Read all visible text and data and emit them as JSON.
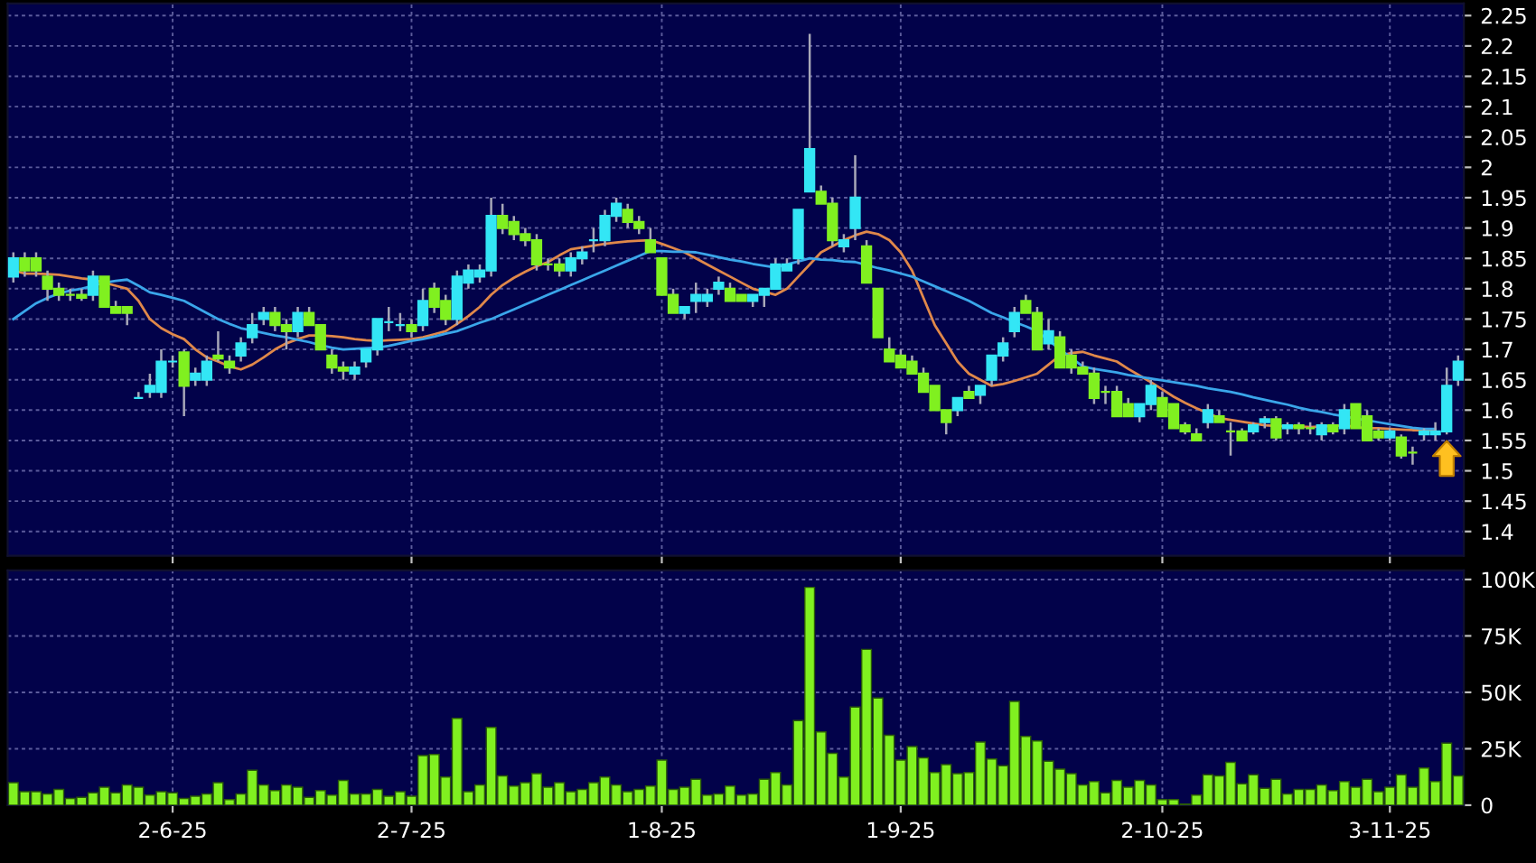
{
  "chart_data": [
    {
      "type": "candlestick",
      "ohlc": [
        [
          1.82,
          1.86,
          1.81,
          1.85
        ],
        [
          1.85,
          1.86,
          1.82,
          1.83
        ],
        [
          1.85,
          1.86,
          1.82,
          1.83
        ],
        [
          1.82,
          1.83,
          1.78,
          1.8
        ],
        [
          1.8,
          1.81,
          1.78,
          1.79
        ],
        [
          1.79,
          1.8,
          1.78,
          1.79
        ],
        [
          1.79,
          1.8,
          1.78,
          1.785
        ],
        [
          1.79,
          1.83,
          1.78,
          1.82
        ],
        [
          1.82,
          1.82,
          1.77,
          1.77
        ],
        [
          1.77,
          1.78,
          1.76,
          1.76
        ],
        [
          1.77,
          1.77,
          1.74,
          1.76
        ],
        [
          1.62,
          1.63,
          1.62,
          1.62
        ],
        [
          1.63,
          1.66,
          1.62,
          1.64
        ],
        [
          1.63,
          1.7,
          1.62,
          1.68
        ],
        [
          1.68,
          1.69,
          1.67,
          1.68
        ],
        [
          1.695,
          1.7,
          1.59,
          1.64
        ],
        [
          1.65,
          1.67,
          1.64,
          1.66
        ],
        [
          1.65,
          1.69,
          1.64,
          1.68
        ],
        [
          1.69,
          1.73,
          1.68,
          1.685
        ],
        [
          1.68,
          1.69,
          1.66,
          1.67
        ],
        [
          1.69,
          1.72,
          1.68,
          1.71
        ],
        [
          1.72,
          1.76,
          1.71,
          1.74
        ],
        [
          1.75,
          1.77,
          1.74,
          1.76
        ],
        [
          1.76,
          1.77,
          1.73,
          1.74
        ],
        [
          1.74,
          1.75,
          1.7,
          1.73
        ],
        [
          1.73,
          1.77,
          1.72,
          1.76
        ],
        [
          1.76,
          1.77,
          1.74,
          1.74
        ],
        [
          1.74,
          1.74,
          1.7,
          1.7
        ],
        [
          1.69,
          1.7,
          1.66,
          1.67
        ],
        [
          1.67,
          1.68,
          1.65,
          1.665
        ],
        [
          1.66,
          1.68,
          1.65,
          1.67
        ],
        [
          1.68,
          1.7,
          1.67,
          1.7
        ],
        [
          1.7,
          1.75,
          1.69,
          1.75
        ],
        [
          1.745,
          1.77,
          1.73,
          1.745
        ],
        [
          1.74,
          1.76,
          1.73,
          1.74
        ],
        [
          1.74,
          1.75,
          1.72,
          1.73
        ],
        [
          1.74,
          1.8,
          1.73,
          1.78
        ],
        [
          1.8,
          1.81,
          1.76,
          1.77
        ],
        [
          1.78,
          1.79,
          1.74,
          1.75
        ],
        [
          1.75,
          1.83,
          1.74,
          1.82
        ],
        [
          1.81,
          1.84,
          1.8,
          1.83
        ],
        [
          1.82,
          1.84,
          1.81,
          1.83
        ],
        [
          1.83,
          1.95,
          1.82,
          1.92
        ],
        [
          1.92,
          1.94,
          1.89,
          1.9
        ],
        [
          1.91,
          1.92,
          1.88,
          1.89
        ],
        [
          1.89,
          1.9,
          1.87,
          1.88
        ],
        [
          1.88,
          1.89,
          1.83,
          1.84
        ],
        [
          1.84,
          1.85,
          1.83,
          1.84
        ],
        [
          1.84,
          1.85,
          1.82,
          1.83
        ],
        [
          1.83,
          1.86,
          1.82,
          1.85
        ],
        [
          1.85,
          1.87,
          1.84,
          1.86
        ],
        [
          1.88,
          1.9,
          1.86,
          1.88
        ],
        [
          1.88,
          1.93,
          1.87,
          1.92
        ],
        [
          1.92,
          1.95,
          1.91,
          1.94
        ],
        [
          1.93,
          1.94,
          1.9,
          1.91
        ],
        [
          1.91,
          1.92,
          1.89,
          1.9
        ],
        [
          1.88,
          1.9,
          1.86,
          1.86
        ],
        [
          1.85,
          1.85,
          1.79,
          1.79
        ],
        [
          1.79,
          1.8,
          1.76,
          1.76
        ],
        [
          1.76,
          1.77,
          1.75,
          1.77
        ],
        [
          1.78,
          1.81,
          1.76,
          1.79
        ],
        [
          1.78,
          1.8,
          1.77,
          1.79
        ],
        [
          1.8,
          1.82,
          1.79,
          1.81
        ],
        [
          1.8,
          1.81,
          1.78,
          1.78
        ],
        [
          1.79,
          1.79,
          1.78,
          1.78
        ],
        [
          1.78,
          1.79,
          1.77,
          1.79
        ],
        [
          1.79,
          1.8,
          1.77,
          1.8
        ],
        [
          1.8,
          1.85,
          1.8,
          1.84
        ],
        [
          1.83,
          1.85,
          1.83,
          1.84
        ],
        [
          1.85,
          1.93,
          1.84,
          1.93
        ],
        [
          1.96,
          2.22,
          1.96,
          2.03
        ],
        [
          1.96,
          1.97,
          1.94,
          1.94
        ],
        [
          1.94,
          1.95,
          1.87,
          1.88
        ],
        [
          1.87,
          1.89,
          1.86,
          1.88
        ],
        [
          1.9,
          2.02,
          1.88,
          1.95
        ],
        [
          1.87,
          1.88,
          1.81,
          1.81
        ],
        [
          1.8,
          1.8,
          1.72,
          1.72
        ],
        [
          1.7,
          1.72,
          1.68,
          1.68
        ],
        [
          1.69,
          1.7,
          1.67,
          1.67
        ],
        [
          1.68,
          1.69,
          1.66,
          1.66
        ],
        [
          1.66,
          1.67,
          1.63,
          1.63
        ],
        [
          1.64,
          1.64,
          1.6,
          1.6
        ],
        [
          1.6,
          1.6,
          1.56,
          1.58
        ],
        [
          1.6,
          1.62,
          1.59,
          1.62
        ],
        [
          1.63,
          1.64,
          1.62,
          1.62
        ],
        [
          1.625,
          1.64,
          1.61,
          1.64
        ],
        [
          1.65,
          1.69,
          1.64,
          1.69
        ],
        [
          1.69,
          1.72,
          1.68,
          1.71
        ],
        [
          1.73,
          1.77,
          1.72,
          1.76
        ],
        [
          1.78,
          1.79,
          1.76,
          1.76
        ],
        [
          1.76,
          1.77,
          1.7,
          1.7
        ],
        [
          1.71,
          1.75,
          1.7,
          1.73
        ],
        [
          1.72,
          1.73,
          1.67,
          1.67
        ],
        [
          1.69,
          1.7,
          1.66,
          1.67
        ],
        [
          1.67,
          1.68,
          1.66,
          1.66
        ],
        [
          1.66,
          1.67,
          1.61,
          1.62
        ],
        [
          1.63,
          1.64,
          1.61,
          1.63
        ],
        [
          1.63,
          1.64,
          1.59,
          1.59
        ],
        [
          1.61,
          1.62,
          1.59,
          1.59
        ],
        [
          1.59,
          1.61,
          1.58,
          1.61
        ],
        [
          1.61,
          1.65,
          1.6,
          1.64
        ],
        [
          1.62,
          1.63,
          1.59,
          1.59
        ],
        [
          1.61,
          1.61,
          1.57,
          1.57
        ],
        [
          1.575,
          1.58,
          1.56,
          1.565
        ],
        [
          1.56,
          1.57,
          1.55,
          1.55
        ],
        [
          1.58,
          1.61,
          1.57,
          1.6
        ],
        [
          1.59,
          1.6,
          1.58,
          1.58
        ],
        [
          1.565,
          1.58,
          1.525,
          1.565
        ],
        [
          1.565,
          1.57,
          1.55,
          1.55
        ],
        [
          1.565,
          1.58,
          1.56,
          1.575
        ],
        [
          1.58,
          1.59,
          1.57,
          1.585
        ],
        [
          1.585,
          1.59,
          1.55,
          1.555
        ],
        [
          1.57,
          1.58,
          1.56,
          1.575
        ],
        [
          1.575,
          1.58,
          1.56,
          1.57
        ],
        [
          1.57,
          1.58,
          1.56,
          1.57
        ],
        [
          1.56,
          1.58,
          1.55,
          1.575
        ],
        [
          1.575,
          1.58,
          1.56,
          1.565
        ],
        [
          1.57,
          1.61,
          1.56,
          1.6
        ],
        [
          1.61,
          1.61,
          1.57,
          1.57
        ],
        [
          1.59,
          1.6,
          1.55,
          1.55
        ],
        [
          1.565,
          1.57,
          1.55,
          1.555
        ],
        [
          1.555,
          1.57,
          1.55,
          1.565
        ],
        [
          1.555,
          1.56,
          1.52,
          1.525
        ],
        [
          1.53,
          1.54,
          1.51,
          1.53
        ],
        [
          1.56,
          1.57,
          1.55,
          1.565
        ],
        [
          1.56,
          1.58,
          1.55,
          1.565
        ],
        [
          1.565,
          1.67,
          1.56,
          1.64
        ],
        [
          1.65,
          1.69,
          1.64,
          1.68
        ]
      ],
      "colors": [
        "#33e6f5",
        "#80f020",
        "#80f020",
        "#80f020",
        "#80f020",
        "#80f020",
        "#80f020",
        "#33e6f5",
        "#80f020",
        "#80f020",
        "#80f020",
        "#33e6f5",
        "#33e6f5",
        "#33e6f5",
        "#33e6f5",
        "#80f020",
        "#33e6f5",
        "#33e6f5",
        "#80f020",
        "#80f020",
        "#33e6f5",
        "#33e6f5",
        "#33e6f5",
        "#80f020",
        "#80f020",
        "#33e6f5",
        "#80f020",
        "#80f020",
        "#80f020",
        "#80f020",
        "#33e6f5",
        "#33e6f5",
        "#33e6f5",
        "#33e6f5",
        "#33e6f5",
        "#80f020",
        "#33e6f5",
        "#80f020",
        "#80f020",
        "#33e6f5",
        "#33e6f5",
        "#33e6f5",
        "#33e6f5",
        "#80f020",
        "#80f020",
        "#80f020",
        "#80f020",
        "#80f020",
        "#80f020",
        "#33e6f5",
        "#33e6f5",
        "#33e6f5",
        "#33e6f5",
        "#33e6f5",
        "#80f020",
        "#80f020",
        "#80f020",
        "#80f020",
        "#80f020",
        "#33e6f5",
        "#33e6f5",
        "#33e6f5",
        "#33e6f5",
        "#80f020",
        "#80f020",
        "#33e6f5",
        "#33e6f5",
        "#33e6f5",
        "#33e6f5",
        "#33e6f5",
        "#33e6f5",
        "#80f020",
        "#80f020",
        "#33e6f5",
        "#33e6f5",
        "#80f020",
        "#80f020",
        "#80f020",
        "#80f020",
        "#80f020",
        "#80f020",
        "#80f020",
        "#80f020",
        "#33e6f5",
        "#80f020",
        "#33e6f5",
        "#33e6f5",
        "#33e6f5",
        "#33e6f5",
        "#80f020",
        "#80f020",
        "#33e6f5",
        "#80f020",
        "#80f020",
        "#80f020",
        "#80f020",
        "#80f020",
        "#80f020",
        "#80f020",
        "#33e6f5",
        "#33e6f5",
        "#80f020",
        "#80f020",
        "#80f020",
        "#80f020",
        "#33e6f5",
        "#80f020",
        "#80f020",
        "#80f020",
        "#33e6f5",
        "#33e6f5",
        "#80f020",
        "#33e6f5",
        "#80f020",
        "#80f020",
        "#33e6f5",
        "#80f020",
        "#33e6f5",
        "#80f020",
        "#80f020",
        "#80f020",
        "#33e6f5",
        "#80f020",
        "#80f020",
        "#33e6f5",
        "#33e6f5",
        "#33e6f5",
        "#33e6f5"
      ],
      "series": [
        {
          "type": "line",
          "color": "#e0884a",
          "values": [
            1.83,
            1.825,
            1.825,
            1.824,
            1.823,
            1.82,
            1.817,
            1.815,
            1.81,
            1.805,
            1.8,
            1.78,
            1.75,
            1.735,
            1.725,
            1.717,
            1.7,
            1.687,
            1.68,
            1.672,
            1.667,
            1.675,
            1.687,
            1.7,
            1.71,
            1.717,
            1.723,
            1.723,
            1.722,
            1.72,
            1.717,
            1.715,
            1.714,
            1.715,
            1.716,
            1.717,
            1.72,
            1.725,
            1.73,
            1.742,
            1.755,
            1.77,
            1.79,
            1.806,
            1.818,
            1.828,
            1.837,
            1.844,
            1.855,
            1.865,
            1.868,
            1.871,
            1.874,
            1.876,
            1.878,
            1.879,
            1.88,
            1.874,
            1.867,
            1.86,
            1.85,
            1.84,
            1.83,
            1.82,
            1.81,
            1.8,
            1.795,
            1.79,
            1.8,
            1.82,
            1.84,
            1.86,
            1.87,
            1.88,
            1.888,
            1.894,
            1.89,
            1.88,
            1.86,
            1.83,
            1.785,
            1.74,
            1.71,
            1.68,
            1.66,
            1.65,
            1.64,
            1.643,
            1.648,
            1.654,
            1.66,
            1.675,
            1.69,
            1.694,
            1.696,
            1.69,
            1.685,
            1.68,
            1.668,
            1.657,
            1.646,
            1.634,
            1.622,
            1.612,
            1.603,
            1.595,
            1.587,
            1.584,
            1.581,
            1.578,
            1.575,
            1.574,
            1.573,
            1.573,
            1.572,
            1.573,
            1.574,
            1.575,
            1.572,
            1.57,
            1.57,
            1.569,
            1.568,
            1.567,
            1.567,
            1.566,
            null,
            null
          ]
        },
        {
          "type": "line",
          "color": "#3aa6ea",
          "values": [
            1.75,
            1.763,
            1.776,
            1.785,
            1.792,
            1.797,
            1.8,
            1.805,
            1.81,
            1.813,
            1.815,
            1.805,
            1.794,
            1.79,
            1.785,
            1.78,
            1.77,
            1.76,
            1.75,
            1.742,
            1.735,
            1.731,
            1.727,
            1.723,
            1.72,
            1.716,
            1.712,
            1.707,
            1.703,
            1.7,
            1.701,
            1.702,
            1.703,
            1.706,
            1.71,
            1.714,
            1.717,
            1.721,
            1.726,
            1.73,
            1.737,
            1.744,
            1.75,
            1.758,
            1.766,
            1.774,
            1.782,
            1.79,
            1.798,
            1.806,
            1.814,
            1.822,
            1.83,
            1.838,
            1.846,
            1.854,
            1.862,
            1.862,
            1.861,
            1.861,
            1.86,
            1.856,
            1.852,
            1.848,
            1.845,
            1.841,
            1.838,
            1.835,
            1.84,
            1.845,
            1.85,
            1.848,
            1.847,
            1.845,
            1.844,
            1.839,
            1.834,
            1.83,
            1.825,
            1.82,
            1.812,
            1.804,
            1.796,
            1.788,
            1.78,
            1.77,
            1.76,
            1.753,
            1.745,
            1.738,
            1.73,
            1.715,
            1.7,
            1.686,
            1.672,
            1.668,
            1.665,
            1.662,
            1.658,
            1.655,
            1.652,
            1.649,
            1.646,
            1.643,
            1.64,
            1.636,
            1.633,
            1.63,
            1.626,
            1.621,
            1.617,
            1.613,
            1.609,
            1.604,
            1.6,
            1.597,
            1.593,
            1.59,
            1.586,
            1.583,
            1.58,
            1.577,
            1.574,
            1.571,
            1.569,
            1.569,
            null,
            null
          ]
        }
      ],
      "ylim": [
        1.36,
        2.27
      ],
      "yticks": [
        1.4,
        1.45,
        1.5,
        1.55,
        1.6,
        1.65,
        1.7,
        1.75,
        1.8,
        1.85,
        1.9,
        1.95,
        2,
        2.05,
        2.1,
        2.15,
        2.2,
        2.25
      ],
      "grid": true,
      "tick_labels": "y"
    },
    {
      "type": "bar",
      "categories": [
        null,
        null,
        null,
        null,
        null,
        null,
        null,
        null,
        null,
        null,
        null,
        null,
        null,
        null,
        "2-6-25",
        null,
        null,
        null,
        null,
        null,
        null,
        null,
        null,
        null,
        null,
        null,
        null,
        null,
        null,
        null,
        null,
        null,
        null,
        null,
        null,
        "2-7-25",
        null,
        null,
        null,
        null,
        null,
        null,
        null,
        null,
        null,
        null,
        null,
        null,
        null,
        null,
        null,
        null,
        null,
        null,
        null,
        null,
        null,
        "1-8-25",
        null,
        null,
        null,
        null,
        null,
        null,
        null,
        null,
        null,
        null,
        null,
        null,
        null,
        null,
        null,
        null,
        null,
        null,
        null,
        null,
        "1-9-25",
        null,
        null,
        null,
        null,
        null,
        null,
        null,
        null,
        null,
        null,
        null,
        null,
        null,
        null,
        null,
        null,
        null,
        null,
        null,
        null,
        null,
        null,
        "2-10-25",
        null,
        null,
        null,
        null,
        null,
        null,
        null,
        null,
        null,
        null,
        null,
        null,
        null,
        null,
        null,
        null,
        null,
        null,
        null,
        "3-11-25",
        null,
        null,
        null,
        null,
        null,
        null
      ],
      "values": [
        10000,
        6000,
        6000,
        5000,
        7000,
        3000,
        3500,
        5500,
        8000,
        5500,
        9000,
        8000,
        4500,
        6000,
        5500,
        3000,
        4000,
        5000,
        10000,
        2500,
        5000,
        15500,
        9000,
        6500,
        9000,
        8000,
        3500,
        6500,
        4500,
        11000,
        5000,
        5000,
        7000,
        4000,
        6000,
        4000,
        22000,
        22500,
        12500,
        38500,
        6000,
        9000,
        34500,
        13000,
        8500,
        10000,
        14000,
        8000,
        10000,
        6000,
        7000,
        10000,
        12500,
        9000,
        6000,
        7000,
        8500,
        20000,
        7000,
        8000,
        11500,
        4500,
        5000,
        8500,
        4500,
        5000,
        11500,
        14500,
        9000,
        37500,
        96500,
        32500,
        23000,
        12500,
        43500,
        69000,
        47500,
        31000,
        20000,
        26000,
        21000,
        14500,
        18000,
        14000,
        14500,
        28000,
        20500,
        17500,
        46000,
        30500,
        28500,
        19500,
        16000,
        14000,
        9000,
        10500,
        5500,
        11000,
        8000,
        11000,
        9000,
        2500,
        2500,
        500,
        4500,
        13500,
        13000,
        19000,
        9500,
        13500,
        7500,
        11500,
        5000,
        7000,
        7000,
        9000,
        6500,
        10500,
        8000,
        11500,
        6000,
        8000,
        13500,
        8000,
        16500,
        10500,
        27500,
        13000
      ],
      "color": "#80f020",
      "ylim": [
        0,
        104000
      ],
      "yticks": [
        0,
        {
          "value": 25000,
          "label": "25K"
        },
        {
          "value": 50000,
          "label": "50K"
        },
        {
          "value": 75000,
          "label": "75K"
        },
        {
          "value": 100000,
          "label": "100K"
        }
      ],
      "grid": true
    }
  ]
}
